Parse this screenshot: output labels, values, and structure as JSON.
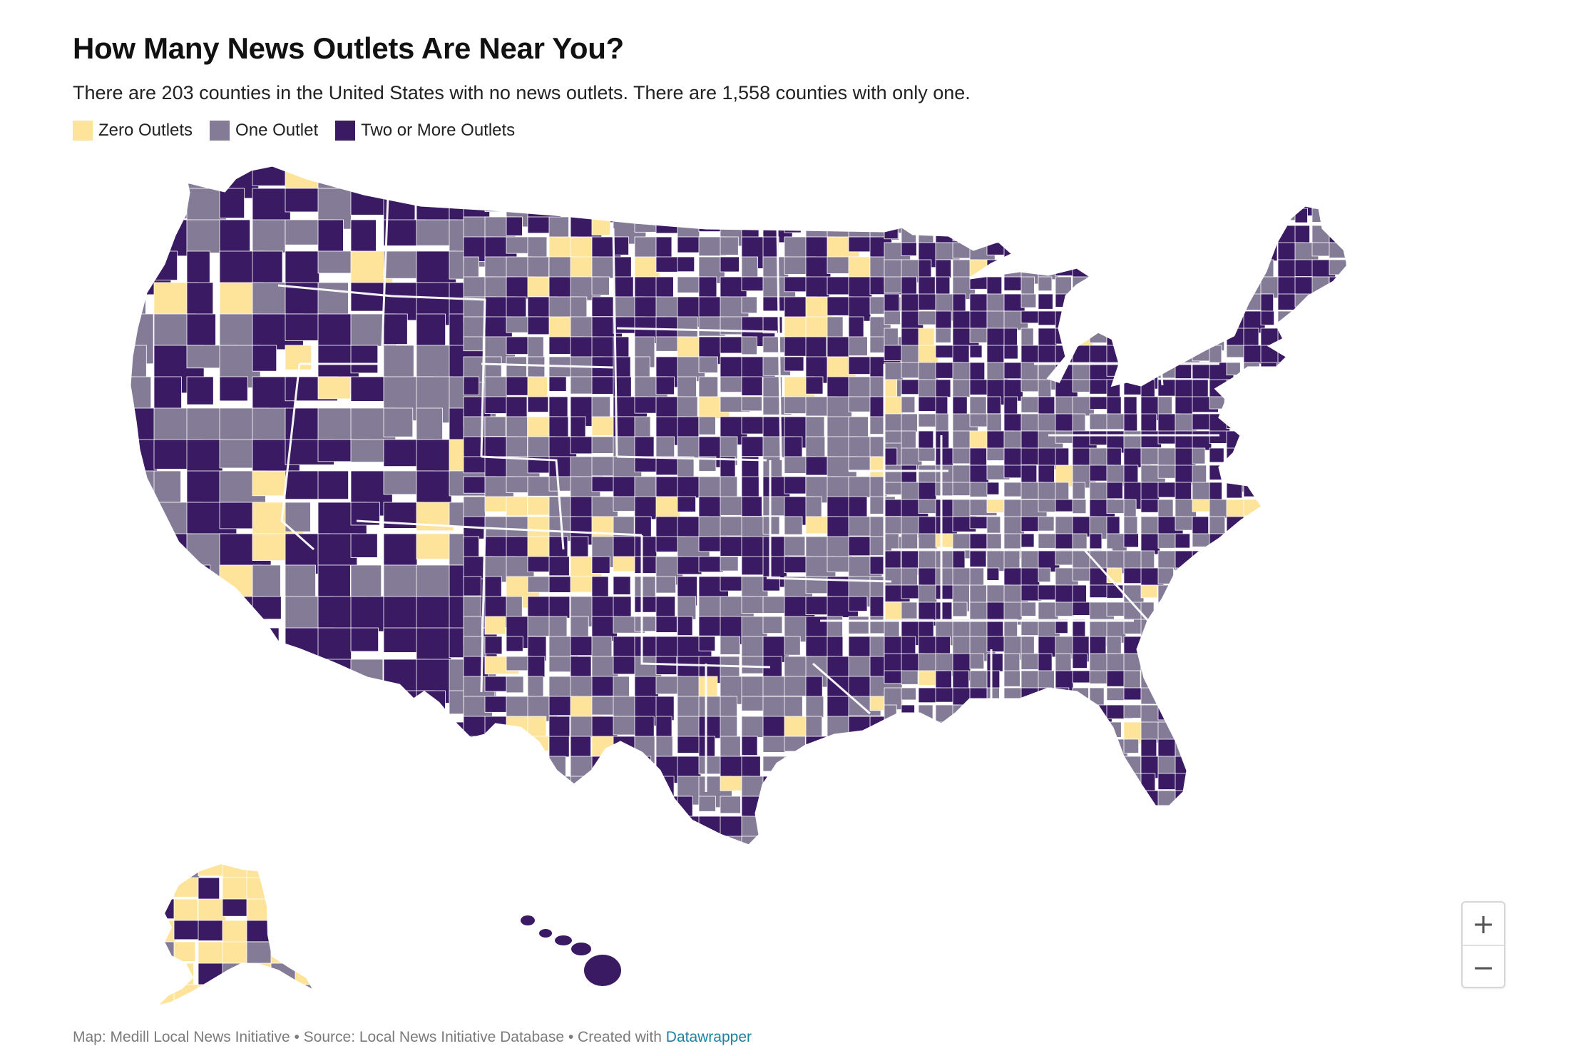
{
  "title": "How Many News Outlets Are Near You?",
  "subtitle": "There are 203 counties in the United States with no news outlets. There are 1,558 counties with only one.",
  "legend": [
    {
      "label": "Zero Outlets",
      "color": "#fee49b"
    },
    {
      "label": "One Outlet",
      "color": "#847b97"
    },
    {
      "label": "Two or More Outlets",
      "color": "#3a1a63"
    }
  ],
  "zoom": {
    "in_label": "+",
    "out_label": "−"
  },
  "footer": {
    "map_credit": "Map: Medill Local News Initiative",
    "separator": " • ",
    "source": "Source: Local News Initiative Database",
    "created_with": "Created with ",
    "tool": "Datawrapper"
  },
  "map_data": {
    "type": "choropleth",
    "region": "United States counties",
    "categories": [
      "Zero Outlets",
      "One Outlet",
      "Two or More Outlets"
    ],
    "counties_zero_outlets": 203,
    "counties_one_outlet": 1558
  }
}
